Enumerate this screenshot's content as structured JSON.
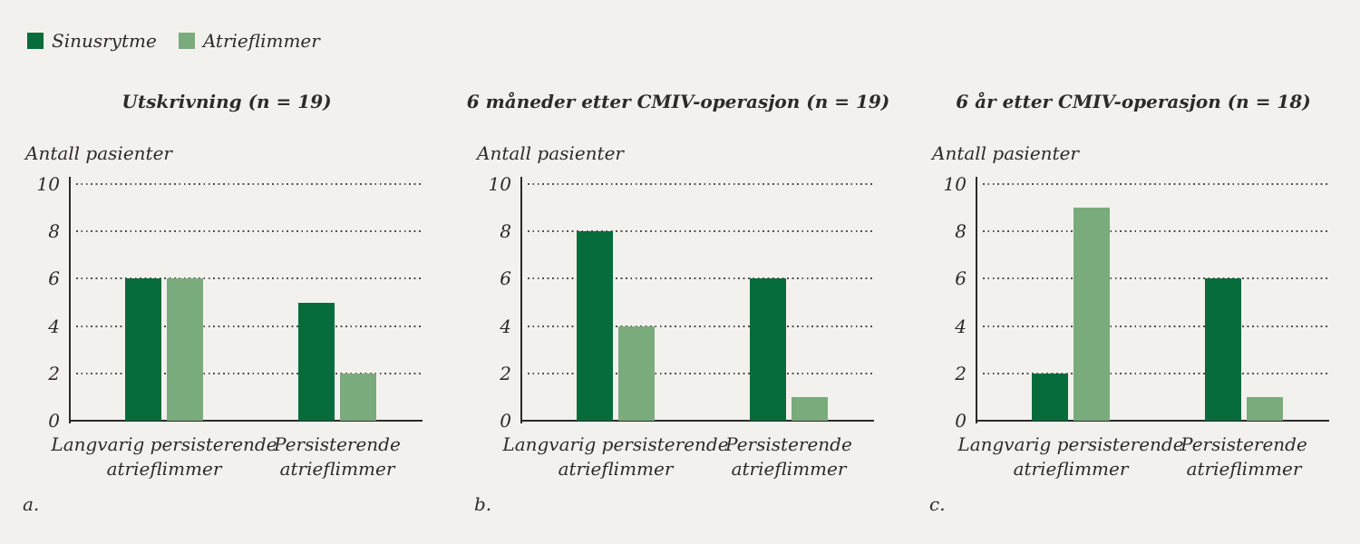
{
  "figure": {
    "background": "#f2f1ee",
    "text_color": "#2e2b27",
    "axis_color": "#2a2a28",
    "grid_color": "#53504a"
  },
  "legend": {
    "items": [
      {
        "label": "Sinusrytme",
        "color": "#076c3c"
      },
      {
        "label": "Atrieflimmer",
        "color": "#7aab7d"
      }
    ]
  },
  "chart_data": [
    {
      "type": "bar",
      "panel_letter": "a.",
      "title": "Utskrivning (n = 19)",
      "ylabel": "Antall pasienter",
      "xlabel": "",
      "ylim": [
        0,
        10
      ],
      "yticks": [
        0,
        2,
        4,
        6,
        8,
        10
      ],
      "grid": "horizontal dotted",
      "legend_position": "top-left of figure (shared)",
      "categories": [
        "Langvarig persisterende\natrieflimmer",
        "Persisterende\natrieflimmer"
      ],
      "series": [
        {
          "name": "Sinusrytme",
          "color": "#076c3c",
          "values": [
            6,
            5
          ]
        },
        {
          "name": "Atrieflimmer",
          "color": "#7aab7d",
          "values": [
            6,
            2
          ]
        }
      ]
    },
    {
      "type": "bar",
      "panel_letter": "b.",
      "title": "6 måneder etter CMIV-operasjon  (n = 19)",
      "ylabel": "Antall pasienter",
      "xlabel": "",
      "ylim": [
        0,
        10
      ],
      "yticks": [
        0,
        2,
        4,
        6,
        8,
        10
      ],
      "grid": "horizontal dotted",
      "legend_position": "top-left of figure (shared)",
      "categories": [
        "Langvarig persisterende\natrieflimmer",
        "Persisterende\natrieflimmer"
      ],
      "series": [
        {
          "name": "Sinusrytme",
          "color": "#076c3c",
          "values": [
            8,
            6
          ]
        },
        {
          "name": "Atrieflimmer",
          "color": "#7aab7d",
          "values": [
            4,
            1
          ]
        }
      ]
    },
    {
      "type": "bar",
      "panel_letter": "c.",
      "title": "6 år etter CMIV-operasjon  (n = 18)",
      "ylabel": "Antall pasienter",
      "xlabel": "",
      "ylim": [
        0,
        10
      ],
      "yticks": [
        0,
        2,
        4,
        6,
        8,
        10
      ],
      "grid": "horizontal dotted",
      "legend_position": "top-left of figure (shared)",
      "categories": [
        "Langvarig persisterende\natrieflimmer",
        "Persisterende\natrieflimmer"
      ],
      "series": [
        {
          "name": "Sinusrytme",
          "color": "#076c3c",
          "values": [
            2,
            6
          ]
        },
        {
          "name": "Atrieflimmer",
          "color": "#7aab7d",
          "values": [
            9,
            1
          ]
        }
      ]
    }
  ]
}
